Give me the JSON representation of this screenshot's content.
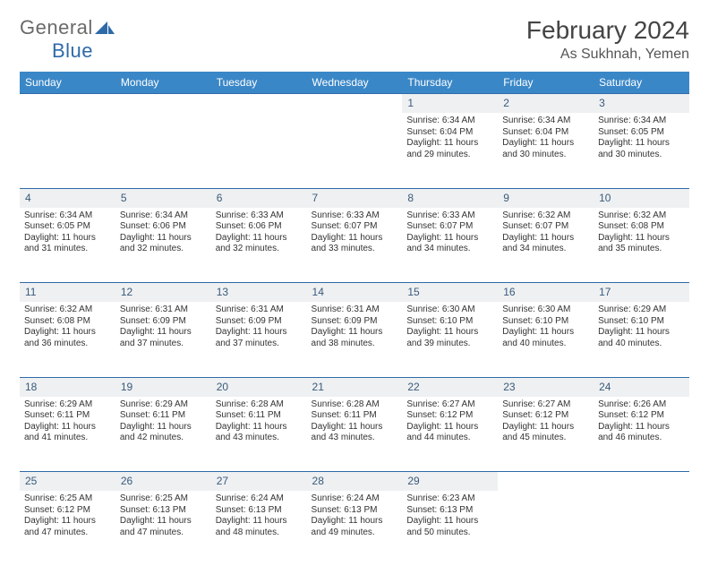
{
  "brand": {
    "part1": "General",
    "part2": "Blue"
  },
  "title": "February 2024",
  "location": "As Sukhnah, Yemen",
  "colors": {
    "header_bg": "#3a87c7",
    "daynum_bg": "#eef0f2",
    "border": "#2f6aa8"
  },
  "weekdays": [
    "Sunday",
    "Monday",
    "Tuesday",
    "Wednesday",
    "Thursday",
    "Friday",
    "Saturday"
  ],
  "weeks": [
    {
      "nums": [
        "",
        "",
        "",
        "",
        "1",
        "2",
        "3"
      ],
      "cells": [
        "",
        "",
        "",
        "",
        "Sunrise: 6:34 AM\nSunset: 6:04 PM\nDaylight: 11 hours and 29 minutes.",
        "Sunrise: 6:34 AM\nSunset: 6:04 PM\nDaylight: 11 hours and 30 minutes.",
        "Sunrise: 6:34 AM\nSunset: 6:05 PM\nDaylight: 11 hours and 30 minutes."
      ]
    },
    {
      "nums": [
        "4",
        "5",
        "6",
        "7",
        "8",
        "9",
        "10"
      ],
      "cells": [
        "Sunrise: 6:34 AM\nSunset: 6:05 PM\nDaylight: 11 hours and 31 minutes.",
        "Sunrise: 6:34 AM\nSunset: 6:06 PM\nDaylight: 11 hours and 32 minutes.",
        "Sunrise: 6:33 AM\nSunset: 6:06 PM\nDaylight: 11 hours and 32 minutes.",
        "Sunrise: 6:33 AM\nSunset: 6:07 PM\nDaylight: 11 hours and 33 minutes.",
        "Sunrise: 6:33 AM\nSunset: 6:07 PM\nDaylight: 11 hours and 34 minutes.",
        "Sunrise: 6:32 AM\nSunset: 6:07 PM\nDaylight: 11 hours and 34 minutes.",
        "Sunrise: 6:32 AM\nSunset: 6:08 PM\nDaylight: 11 hours and 35 minutes."
      ]
    },
    {
      "nums": [
        "11",
        "12",
        "13",
        "14",
        "15",
        "16",
        "17"
      ],
      "cells": [
        "Sunrise: 6:32 AM\nSunset: 6:08 PM\nDaylight: 11 hours and 36 minutes.",
        "Sunrise: 6:31 AM\nSunset: 6:09 PM\nDaylight: 11 hours and 37 minutes.",
        "Sunrise: 6:31 AM\nSunset: 6:09 PM\nDaylight: 11 hours and 37 minutes.",
        "Sunrise: 6:31 AM\nSunset: 6:09 PM\nDaylight: 11 hours and 38 minutes.",
        "Sunrise: 6:30 AM\nSunset: 6:10 PM\nDaylight: 11 hours and 39 minutes.",
        "Sunrise: 6:30 AM\nSunset: 6:10 PM\nDaylight: 11 hours and 40 minutes.",
        "Sunrise: 6:29 AM\nSunset: 6:10 PM\nDaylight: 11 hours and 40 minutes."
      ]
    },
    {
      "nums": [
        "18",
        "19",
        "20",
        "21",
        "22",
        "23",
        "24"
      ],
      "cells": [
        "Sunrise: 6:29 AM\nSunset: 6:11 PM\nDaylight: 11 hours and 41 minutes.",
        "Sunrise: 6:29 AM\nSunset: 6:11 PM\nDaylight: 11 hours and 42 minutes.",
        "Sunrise: 6:28 AM\nSunset: 6:11 PM\nDaylight: 11 hours and 43 minutes.",
        "Sunrise: 6:28 AM\nSunset: 6:11 PM\nDaylight: 11 hours and 43 minutes.",
        "Sunrise: 6:27 AM\nSunset: 6:12 PM\nDaylight: 11 hours and 44 minutes.",
        "Sunrise: 6:27 AM\nSunset: 6:12 PM\nDaylight: 11 hours and 45 minutes.",
        "Sunrise: 6:26 AM\nSunset: 6:12 PM\nDaylight: 11 hours and 46 minutes."
      ]
    },
    {
      "nums": [
        "25",
        "26",
        "27",
        "28",
        "29",
        "",
        ""
      ],
      "cells": [
        "Sunrise: 6:25 AM\nSunset: 6:12 PM\nDaylight: 11 hours and 47 minutes.",
        "Sunrise: 6:25 AM\nSunset: 6:13 PM\nDaylight: 11 hours and 47 minutes.",
        "Sunrise: 6:24 AM\nSunset: 6:13 PM\nDaylight: 11 hours and 48 minutes.",
        "Sunrise: 6:24 AM\nSunset: 6:13 PM\nDaylight: 11 hours and 49 minutes.",
        "Sunrise: 6:23 AM\nSunset: 6:13 PM\nDaylight: 11 hours and 50 minutes.",
        "",
        ""
      ]
    }
  ]
}
